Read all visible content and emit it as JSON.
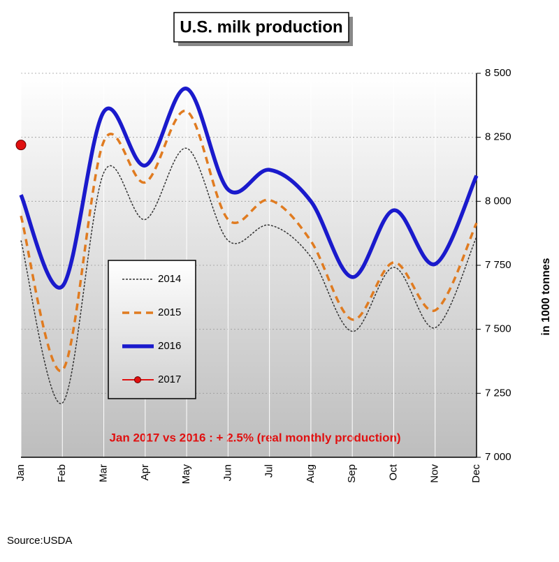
{
  "chart_data": {
    "type": "line",
    "title": "U.S. milk production",
    "y_axis_label": "in 1000 tonnes",
    "annotation": "Jan 2017 vs 2016 : + 2.5%  (real monthly production)",
    "source": "Source:USDA",
    "categories": [
      "Jan",
      "Feb",
      "Mar",
      "Apr",
      "May",
      "Jun",
      "Jul",
      "Aug",
      "Sep",
      "Oct",
      "Nov",
      "Dec"
    ],
    "series": [
      {
        "name": "2014",
        "color": "#333333",
        "values": [
          7847,
          7212,
          8112,
          7929,
          8207,
          7847,
          7907,
          7783,
          7492,
          7742,
          7506,
          7861
        ]
      },
      {
        "name": "2015",
        "color": "#e07b20",
        "values": [
          7943,
          7340,
          8234,
          8074,
          8352,
          7929,
          8005,
          7845,
          7538,
          7761,
          7574,
          7915
        ]
      },
      {
        "name": "2016",
        "color": "#1a1acc",
        "values": [
          8025,
          7668,
          8350,
          8140,
          8440,
          8046,
          8123,
          8000,
          7704,
          7965,
          7755,
          8100
        ]
      },
      {
        "name": "2017",
        "color": "#e01010",
        "values": [
          8220,
          null,
          null,
          null,
          null,
          null,
          null,
          null,
          null,
          null,
          null,
          null
        ]
      }
    ],
    "ylim": [
      7000,
      8500
    ],
    "yticks": [
      {
        "value": 7000,
        "label": "7 000"
      },
      {
        "value": 7250,
        "label": "7 250"
      },
      {
        "value": 7500,
        "label": "7 500"
      },
      {
        "value": 7750,
        "label": "7 750"
      },
      {
        "value": 8000,
        "label": "8 000"
      },
      {
        "value": 8250,
        "label": "8 250"
      },
      {
        "value": 8500,
        "label": "8 500"
      }
    ],
    "grid": true
  }
}
